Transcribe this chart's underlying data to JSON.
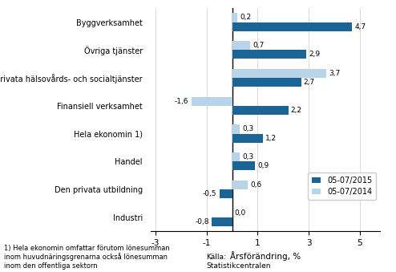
{
  "categories": [
    "Byggverksamhet",
    "Övriga tjänster",
    "Den privata hälsovårds- och socialtjänster",
    "Finansiell verksamhet",
    "Hela ekonomin 1)",
    "Handel",
    "Den privata utbildning",
    "Industri"
  ],
  "values_2015": [
    4.7,
    2.9,
    2.7,
    2.2,
    1.2,
    0.9,
    -0.5,
    -0.8
  ],
  "values_2014": [
    0.2,
    0.7,
    3.7,
    -1.6,
    0.3,
    0.3,
    0.6,
    0.0
  ],
  "color_2015": "#1a6496",
  "color_2014": "#b8d4e8",
  "xlabel": "Årsförändring, %",
  "xlim": [
    -3.2,
    5.8
  ],
  "xticks": [
    -3,
    -1,
    1,
    3,
    5
  ],
  "legend_2015": "05-07/2015",
  "legend_2014": "05-07/2014",
  "footnote": "1) Hela ekonomin omfattar förutom lönesumman\ninom huvudnäringsgrenarna också lönesumman\ninom den offentliga sektorn",
  "source": "Källa:\nStatistikcentralen",
  "bar_height": 0.32
}
